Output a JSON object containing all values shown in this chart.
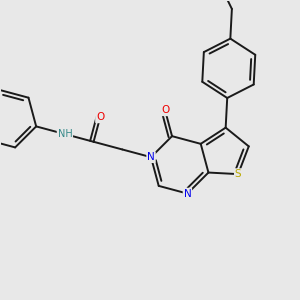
{
  "bg_color": "#e8e8e8",
  "bond_color": "#1a1a1a",
  "bond_width": 1.4,
  "N_color": "#0000ee",
  "O_color": "#ee0000",
  "S_color": "#bbaa00",
  "H_color": "#338888",
  "figsize": [
    3.0,
    3.0
  ],
  "dpi": 100,
  "xlim": [
    0,
    10
  ],
  "ylim": [
    0,
    10
  ]
}
